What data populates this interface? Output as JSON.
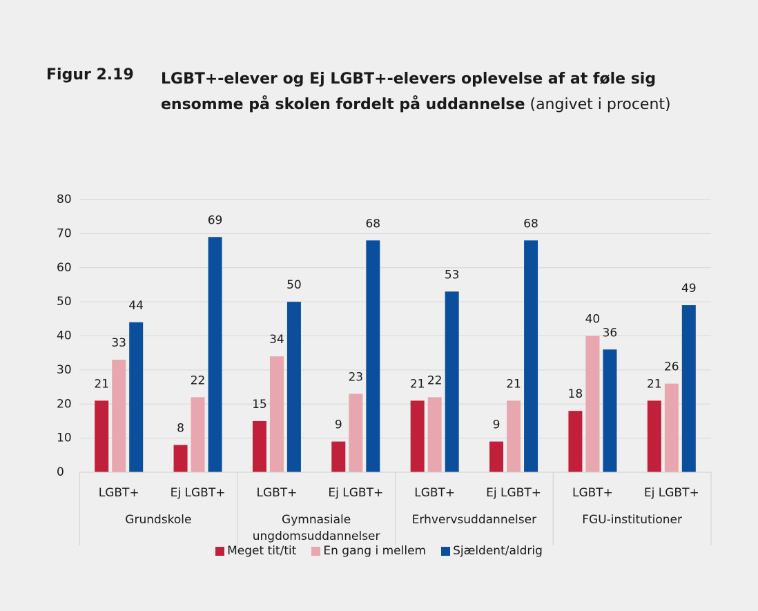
{
  "chart_data": {
    "type": "bar",
    "figure_label": "Figur 2.19",
    "title": "LGBT+-elever og Ej LGBT+-elevers oplevelse af at føle sig ensomme på skolen fordelt på uddannelse",
    "subtitle": "(angivet i procent)",
    "categories": [
      "LGBT+",
      "Ej LGBT+",
      "LGBT+",
      "Ej LGBT+",
      "LGBT+",
      "Ej LGBT+",
      "LGBT+",
      "Ej LGBT+"
    ],
    "groups": [
      "Grundskole",
      "Gymnasiale ungdomsuddannelser",
      "Erhvervsuddannelser",
      "FGU-institutioner"
    ],
    "series": [
      {
        "name": "Meget tit/tit",
        "color": "#c0203a",
        "values": [
          21,
          8,
          15,
          9,
          21,
          9,
          18,
          21
        ]
      },
      {
        "name": "En gang i mellem",
        "color": "#e8a7ae",
        "values": [
          33,
          22,
          34,
          23,
          22,
          21,
          40,
          26
        ]
      },
      {
        "name": "Sjældent/aldrig",
        "color": "#0b4f9c",
        "values": [
          44,
          69,
          50,
          68,
          53,
          68,
          36,
          49
        ]
      }
    ],
    "ylim": [
      0,
      80
    ],
    "yticks": [
      0,
      10,
      20,
      30,
      40,
      50,
      60,
      70,
      80
    ],
    "grid": true,
    "legend": "bottom"
  }
}
